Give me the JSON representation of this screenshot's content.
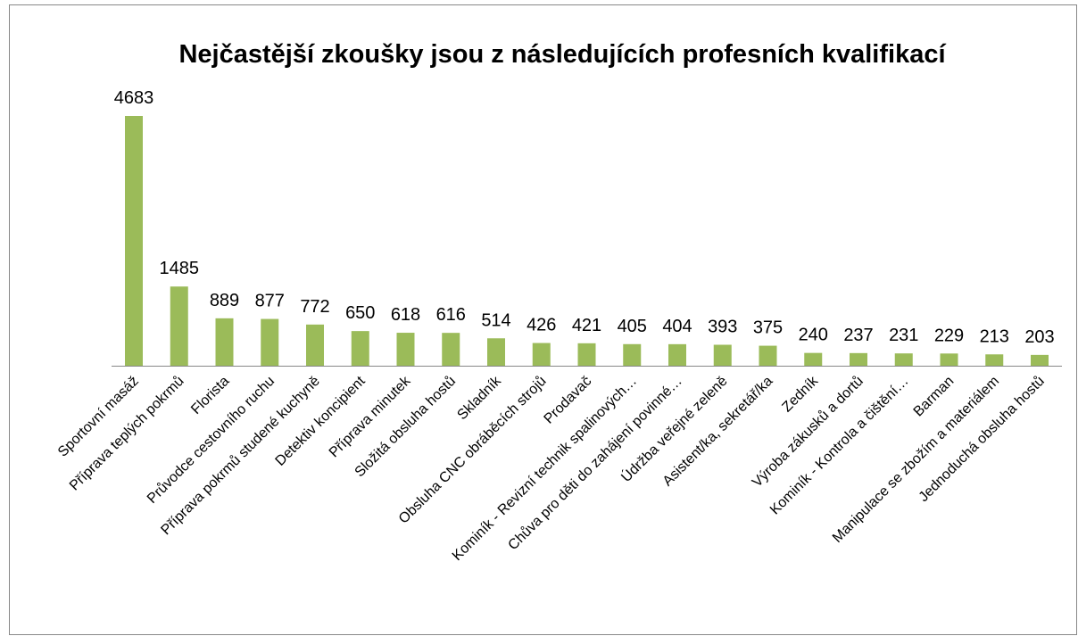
{
  "chart_data": {
    "type": "bar",
    "title": "Nejčastější zkoušky jsou z následujících profesních kvalifikací",
    "categories": [
      "Sportovní masáž",
      "Příprava teplých pokrmů",
      "Florista",
      "Průvodce cestovního ruchu",
      "Příprava pokrmů studené kuchyně",
      "Detektiv koncipient",
      "Příprava minutek",
      "Složitá obsluha hostů",
      "Skladník",
      "Obsluha CNC obráběcích strojů",
      "Prodavač",
      "Kominík - Revizní technik spalinových…",
      "Chůva pro děti do zahájení povinné…",
      "Údržba veřejné zeleně",
      "Asistent/ka, sekretář/ka",
      "Zedník",
      "Výroba zákusků a dortů",
      "Kominík - Kontrola a čištění…",
      "Barman",
      "Manipulace se zbožím a materiálem",
      "Jednoduchá obsluha hostů"
    ],
    "values": [
      4683,
      1485,
      889,
      877,
      772,
      650,
      618,
      616,
      514,
      426,
      421,
      405,
      404,
      393,
      375,
      240,
      237,
      231,
      229,
      213,
      203
    ],
    "color": "#9bbb59"
  }
}
